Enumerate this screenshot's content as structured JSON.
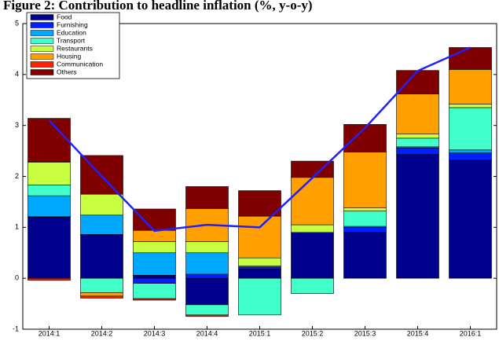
{
  "chart_data": {
    "type": "stacked-bar-line",
    "title": "Figure 2: Contribution to headline inflation (%, y-o-y)",
    "categories": [
      "2014:1",
      "2014:2",
      "2014:3",
      "2014:4",
      "2015:1",
      "2015:2",
      "2015:3",
      "2015:4",
      "2016:1"
    ],
    "series": [
      {
        "name": "Food",
        "color": "#00008f",
        "values": [
          1.2,
          0.84,
          0.06,
          -0.52,
          0.18,
          0.88,
          0.9,
          2.43,
          2.32
        ]
      },
      {
        "name": "Furnishing",
        "color": "#0020ff",
        "values": [
          0.01,
          0.02,
          -0.1,
          0.08,
          0.04,
          0.02,
          0.1,
          0.13,
          0.14
        ]
      },
      {
        "name": "Education",
        "color": "#00a8ff",
        "values": [
          0.41,
          0.38,
          0.44,
          0.42,
          0.02,
          0.0,
          0.02,
          0.02,
          0.06
        ]
      },
      {
        "name": "Transport",
        "color": "#40ffc8",
        "values": [
          0.21,
          -0.28,
          -0.3,
          -0.2,
          -0.72,
          -0.3,
          0.3,
          0.17,
          0.83
        ]
      },
      {
        "name": "Restaurants",
        "color": "#c8ff40",
        "values": [
          0.45,
          0.41,
          0.22,
          0.22,
          0.16,
          0.15,
          0.06,
          0.08,
          0.07
        ]
      },
      {
        "name": "Housing",
        "color": "#ffa000",
        "values": [
          0.01,
          -0.07,
          0.22,
          0.65,
          0.82,
          0.93,
          1.1,
          0.79,
          0.68
        ]
      },
      {
        "name": "Communication",
        "color": "#ff2000",
        "values": [
          -0.04,
          -0.04,
          -0.03,
          -0.03,
          0.0,
          0.0,
          0.0,
          0.0,
          0.0
        ]
      },
      {
        "name": "Others",
        "color": "#800000",
        "values": [
          0.85,
          0.76,
          0.42,
          0.43,
          0.5,
          0.32,
          0.54,
          0.46,
          0.43
        ]
      }
    ],
    "line_color": "#2020ff",
    "line_values": [
      3.1,
      2.0,
      0.93,
      1.05,
      1.0,
      1.97,
      2.95,
      4.07,
      4.53
    ],
    "ylim": [
      -1,
      5
    ],
    "yticks": [
      -1,
      0,
      1,
      2,
      3,
      4,
      5
    ]
  }
}
